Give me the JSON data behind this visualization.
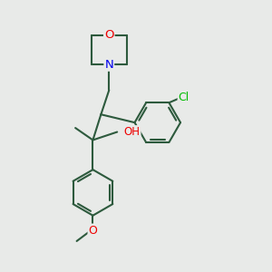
{
  "background_color": "#e8eae8",
  "bond_color": "#2d5a3d",
  "bond_width": 1.5,
  "N_color": "#0000ee",
  "O_color": "#ee0000",
  "Cl_color": "#00bb00",
  "figsize": [
    3.0,
    3.0
  ],
  "dpi": 100,
  "fs": 8.5,
  "xlim": [
    0,
    10
  ],
  "ylim": [
    0,
    10
  ]
}
